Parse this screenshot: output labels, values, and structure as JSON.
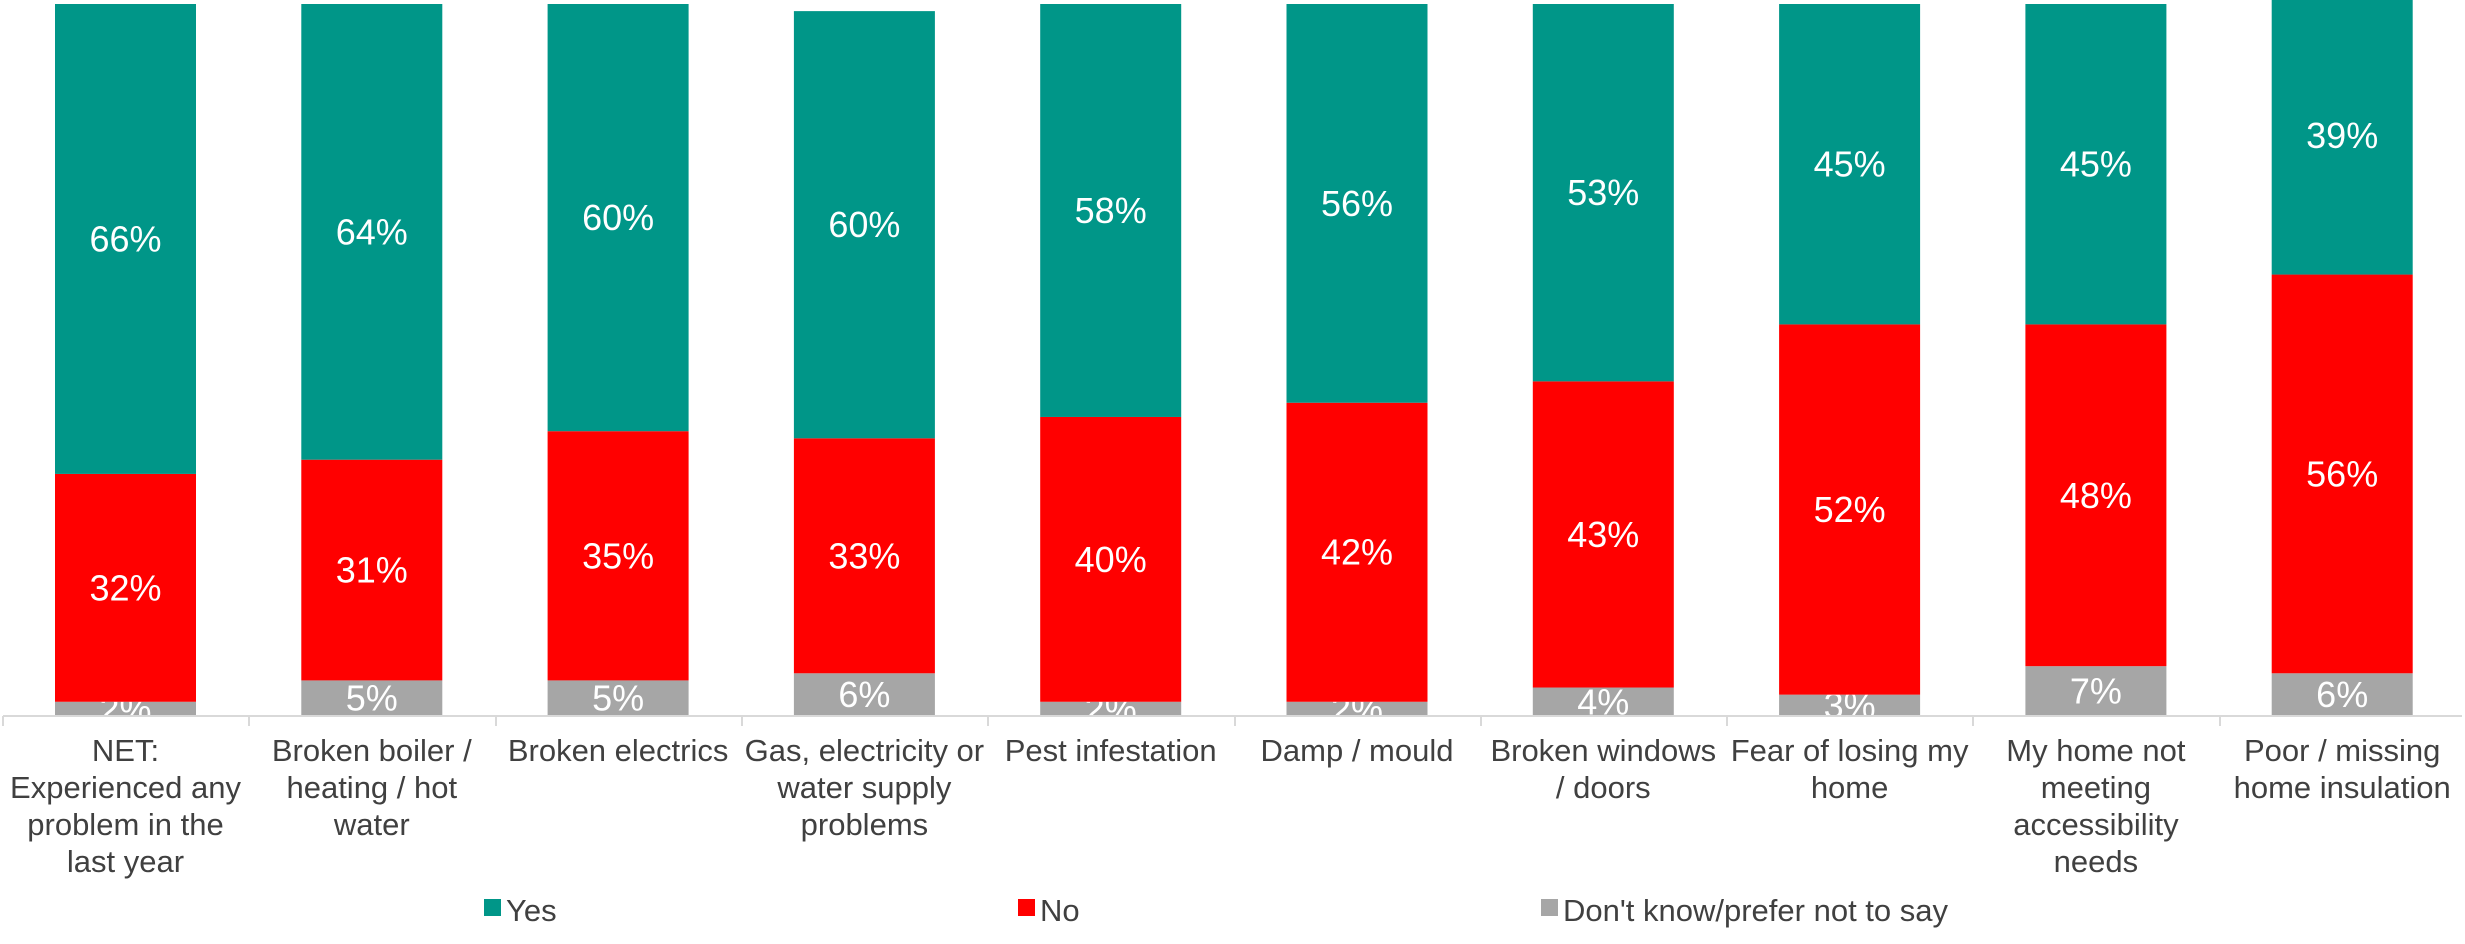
{
  "chart_data": {
    "type": "bar",
    "stacked": true,
    "categories": [
      [
        "NET:",
        "Experienced any",
        "problem in the",
        "last year"
      ],
      [
        "Broken boiler /",
        "heating / hot",
        "water"
      ],
      [
        "Broken electrics"
      ],
      [
        "Gas, electricity or",
        "water supply",
        "problems"
      ],
      [
        "Pest infestation"
      ],
      [
        "Damp / mould"
      ],
      [
        "Broken windows",
        "/ doors"
      ],
      [
        "Fear of losing my",
        "home"
      ],
      [
        "My home not",
        "meeting",
        "accessibility",
        "needs"
      ],
      [
        "Poor / missing",
        "home insulation"
      ]
    ],
    "series": [
      {
        "name": "Don't know/prefer not to say",
        "color": "#a6a6a6",
        "values": [
          2,
          5,
          5,
          6,
          2,
          2,
          4,
          3,
          7,
          6
        ]
      },
      {
        "name": "No",
        "color": "#ff0000",
        "values": [
          32,
          31,
          35,
          33,
          40,
          42,
          43,
          52,
          48,
          56
        ]
      },
      {
        "name": "Yes",
        "color": "#009688",
        "values": [
          66,
          64,
          60,
          60,
          58,
          56,
          53,
          45,
          45,
          39
        ]
      }
    ],
    "value_suffix": "%",
    "legend": {
      "position": "bottom",
      "order": [
        "Yes",
        "No",
        "Don't know/prefer not to say"
      ]
    },
    "grid": false
  }
}
